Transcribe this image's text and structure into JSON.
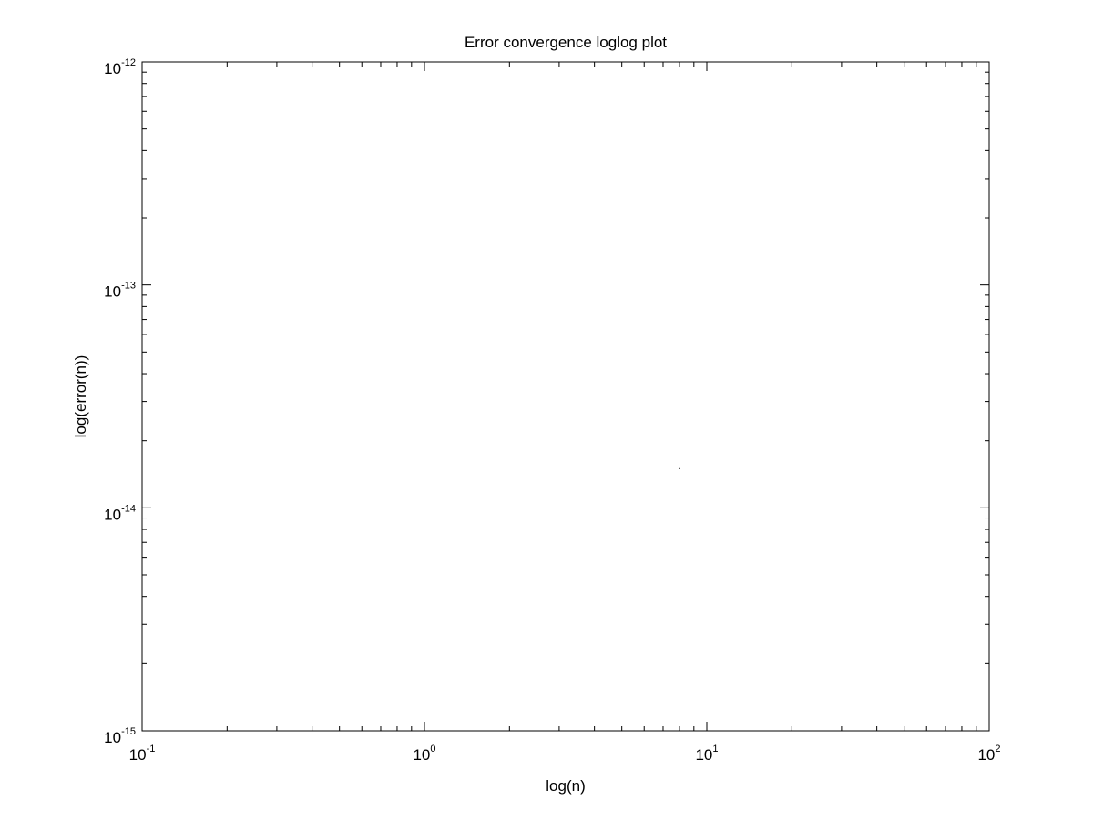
{
  "chart_data": {
    "type": "scatter",
    "title": "Error convergence loglog plot",
    "xlabel": "log(n)",
    "ylabel": "log(error(n))",
    "x_scale": "log",
    "y_scale": "log",
    "xlim": [
      0.1,
      100
    ],
    "ylim": [
      1e-15,
      1e-12
    ],
    "grid": false,
    "x_ticks": [
      {
        "value": 0.1,
        "base": "10",
        "exp": "-1"
      },
      {
        "value": 1,
        "base": "10",
        "exp": "0"
      },
      {
        "value": 10,
        "base": "10",
        "exp": "1"
      },
      {
        "value": 100,
        "base": "10",
        "exp": "2"
      }
    ],
    "y_ticks": [
      {
        "value": 1e-15,
        "base": "10",
        "exp": "-15"
      },
      {
        "value": 1e-14,
        "base": "10",
        "exp": "-14"
      },
      {
        "value": 1e-13,
        "base": "10",
        "exp": "-13"
      },
      {
        "value": 1e-12,
        "base": "10",
        "exp": "-12"
      }
    ],
    "series": [
      {
        "points": [
          {
            "x": 8,
            "y": 1.5e-14
          }
        ],
        "color": "#000000"
      }
    ]
  }
}
